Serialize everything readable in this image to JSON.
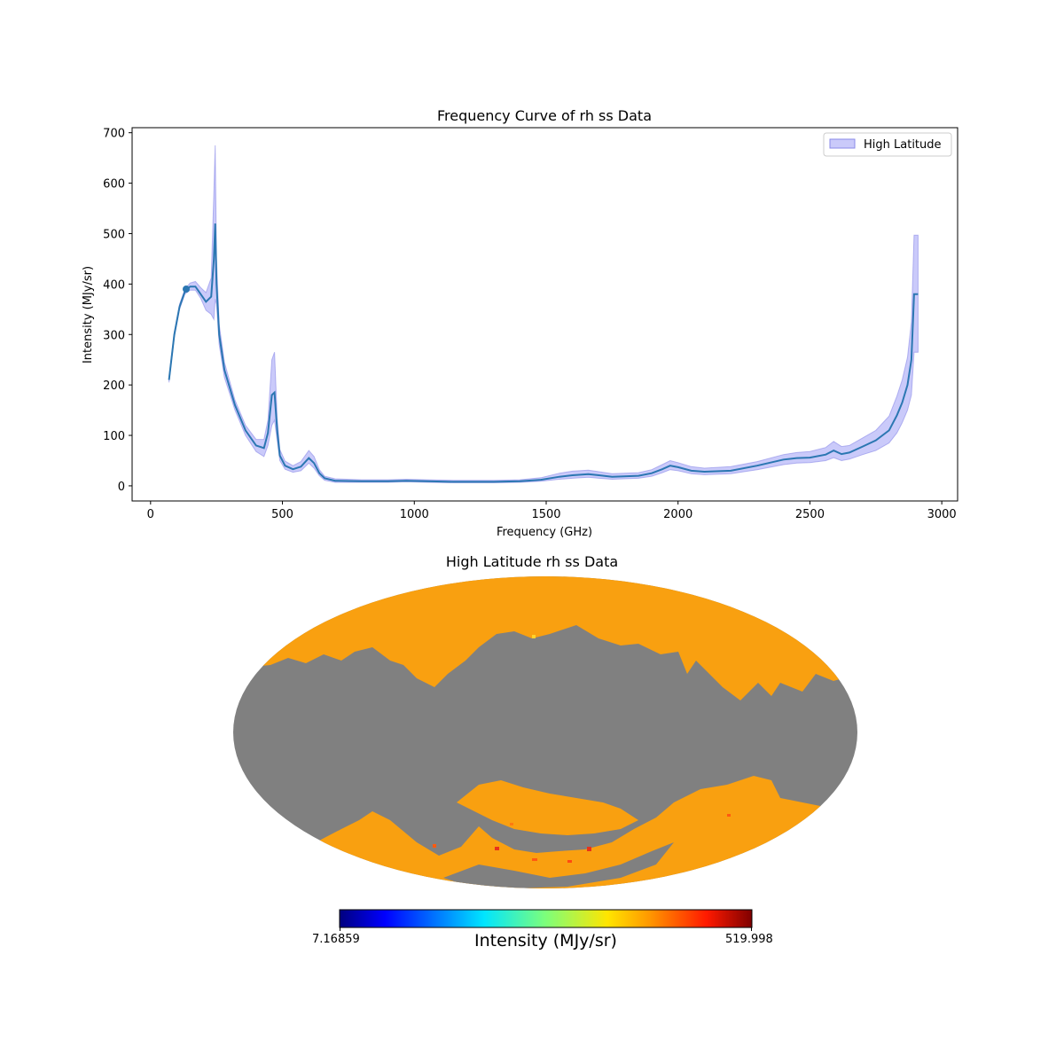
{
  "colors": {
    "line": "#2b77b2",
    "band": "#a6a6f6",
    "band_edge": "#8a8ae8",
    "masked": "#808080",
    "map_fill": "#f9a010"
  },
  "chart_data": [
    {
      "type": "line",
      "title": "Frequency Curve of rh ss Data",
      "xlabel": "Frequency (GHz)",
      "ylabel": "Intensity (MJy/sr)",
      "xlim": [
        -70,
        3060
      ],
      "ylim": [
        -30,
        710
      ],
      "xticks": [
        0,
        500,
        1000,
        1500,
        2000,
        2500,
        3000
      ],
      "yticks": [
        0,
        100,
        200,
        300,
        400,
        500,
        600,
        700
      ],
      "legend": {
        "location": "top-right",
        "entries": [
          "High Latitude"
        ]
      },
      "series": [
        {
          "name": "mean",
          "x": [
            70,
            90,
            110,
            130,
            150,
            170,
            190,
            210,
            230,
            240,
            245,
            250,
            260,
            280,
            320,
            360,
            400,
            430,
            445,
            460,
            470,
            480,
            490,
            510,
            540,
            570,
            600,
            620,
            640,
            660,
            700,
            800,
            900,
            970,
            1050,
            1150,
            1300,
            1400,
            1480,
            1550,
            1600,
            1660,
            1700,
            1750,
            1850,
            1900,
            1940,
            1970,
            2000,
            2050,
            2100,
            2200,
            2300,
            2400,
            2450,
            2500,
            2560,
            2590,
            2620,
            2650,
            2700,
            2750,
            2800,
            2830,
            2850,
            2870,
            2885,
            2895,
            2900,
            2910
          ],
          "y": [
            210,
            300,
            355,
            385,
            395,
            395,
            380,
            365,
            375,
            450,
            520,
            400,
            300,
            230,
            160,
            110,
            80,
            75,
            105,
            180,
            185,
            110,
            60,
            40,
            33,
            38,
            55,
            45,
            25,
            15,
            10,
            9,
            9,
            10,
            9,
            8,
            8,
            9,
            12,
            18,
            21,
            23,
            21,
            18,
            20,
            25,
            33,
            40,
            37,
            30,
            28,
            30,
            40,
            52,
            55,
            56,
            62,
            70,
            63,
            66,
            78,
            90,
            110,
            140,
            165,
            200,
            250,
            380,
            380,
            380
          ],
          "point": {
            "x": 135,
            "y": 390
          }
        },
        {
          "name": "High Latitude",
          "kind": "band",
          "x": [
            70,
            90,
            110,
            130,
            150,
            170,
            190,
            210,
            230,
            240,
            245,
            250,
            260,
            280,
            320,
            360,
            400,
            430,
            445,
            460,
            470,
            480,
            490,
            510,
            540,
            570,
            600,
            620,
            640,
            660,
            700,
            800,
            900,
            970,
            1050,
            1150,
            1300,
            1400,
            1480,
            1550,
            1600,
            1660,
            1700,
            1750,
            1850,
            1900,
            1940,
            1970,
            2000,
            2050,
            2100,
            2200,
            2300,
            2400,
            2450,
            2500,
            2560,
            2590,
            2620,
            2650,
            2700,
            2750,
            2800,
            2830,
            2850,
            2870,
            2885,
            2895,
            2900,
            2910
          ],
          "lower": [
            205,
            295,
            350,
            380,
            388,
            388,
            372,
            348,
            340,
            330,
            370,
            360,
            280,
            215,
            150,
            100,
            68,
            58,
            80,
            120,
            130,
            90,
            50,
            33,
            27,
            30,
            45,
            35,
            20,
            11,
            7,
            7,
            7,
            8,
            7,
            6,
            6,
            7,
            9,
            13,
            15,
            17,
            15,
            13,
            15,
            19,
            26,
            32,
            30,
            24,
            22,
            24,
            32,
            42,
            45,
            46,
            50,
            56,
            50,
            53,
            62,
            70,
            85,
            105,
            125,
            150,
            180,
            265,
            265,
            265
          ],
          "upper": [
            215,
            305,
            360,
            390,
            402,
            405,
            393,
            383,
            412,
            580,
            675,
            450,
            320,
            245,
            170,
            120,
            92,
            92,
            130,
            250,
            265,
            135,
            72,
            49,
            40,
            48,
            70,
            58,
            32,
            19,
            14,
            12,
            12,
            13,
            12,
            11,
            11,
            12,
            16,
            25,
            29,
            31,
            28,
            24,
            26,
            32,
            42,
            50,
            46,
            38,
            35,
            38,
            48,
            62,
            66,
            68,
            76,
            88,
            78,
            80,
            95,
            110,
            138,
            178,
            210,
            255,
            325,
            497,
            497,
            497
          ]
        }
      ]
    },
    {
      "type": "heatmap",
      "projection": "mollweide",
      "title": "High Latitude rh ss Data",
      "colorbar": {
        "label": "Intensity (MJy/sr)",
        "min_label": "7.16859",
        "max_label": "519.998",
        "colormap": "jet"
      }
    }
  ]
}
